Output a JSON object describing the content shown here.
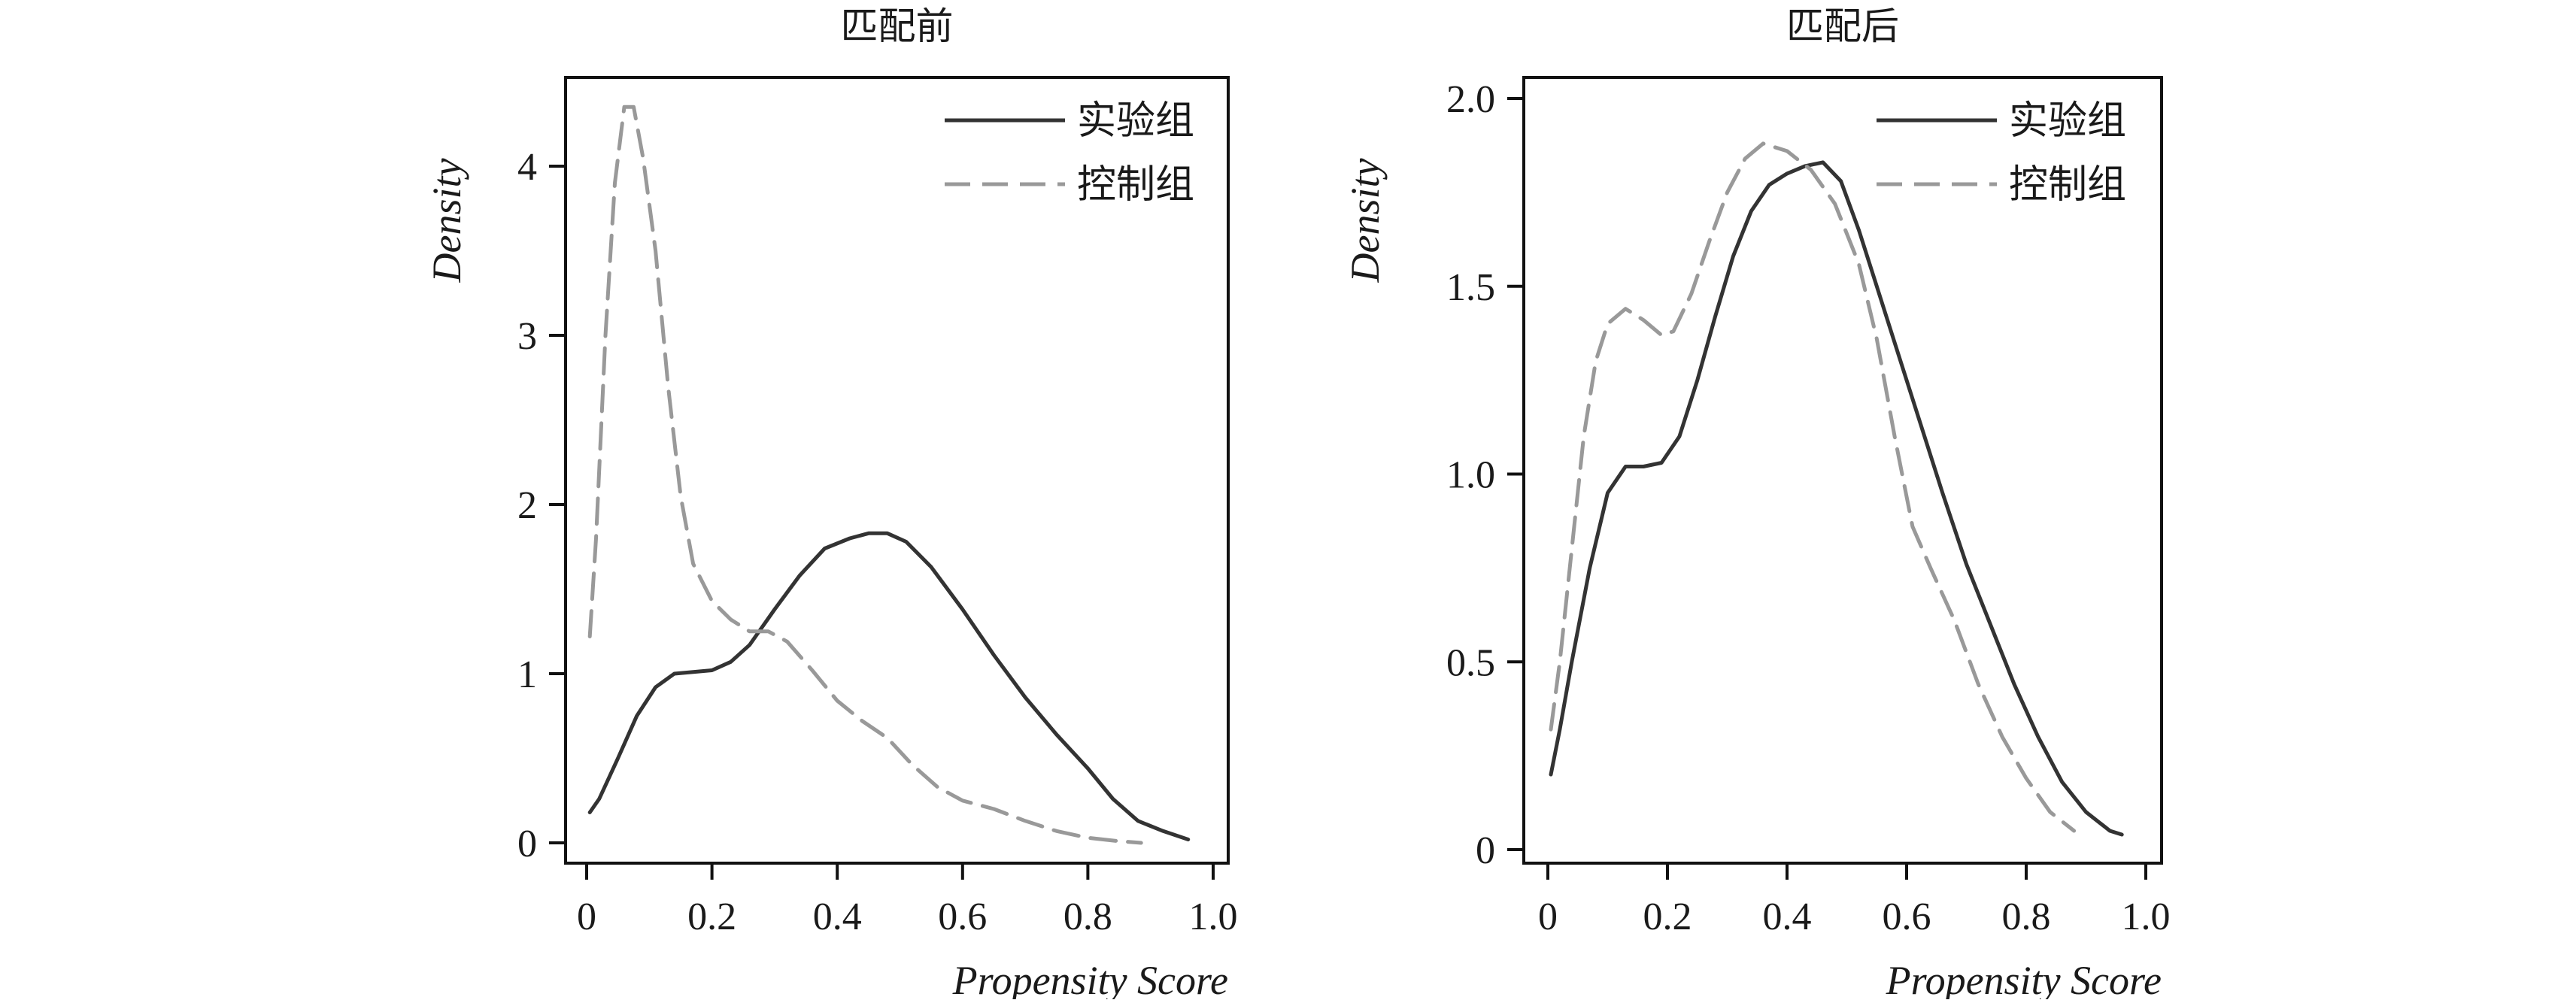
{
  "colors": {
    "treated": "#333333",
    "control": "#999999",
    "axis": "#111111"
  },
  "chart_data": [
    {
      "type": "line",
      "title": "匹配前",
      "xlabel": "Propensity Score",
      "ylabel": "Density",
      "xlim": [
        0,
        1.0
      ],
      "ylim": [
        0,
        4.5
      ],
      "xticks": [
        0,
        0.2,
        0.4,
        0.6,
        0.8,
        1.0
      ],
      "xtick_labels": [
        "0",
        "0.2",
        "0.4",
        "0.6",
        "0.8",
        "1.0"
      ],
      "yticks": [
        0,
        1,
        2,
        3,
        4
      ],
      "ytick_labels": [
        "0",
        "1",
        "2",
        "3",
        "4"
      ],
      "legend": "top-right",
      "series": [
        {
          "name": "实验组",
          "style": "solid",
          "points": [
            [
              0.005,
              0.18
            ],
            [
              0.02,
              0.26
            ],
            [
              0.05,
              0.5
            ],
            [
              0.08,
              0.75
            ],
            [
              0.11,
              0.92
            ],
            [
              0.14,
              1.0
            ],
            [
              0.17,
              1.01
            ],
            [
              0.2,
              1.02
            ],
            [
              0.23,
              1.07
            ],
            [
              0.26,
              1.17
            ],
            [
              0.3,
              1.38
            ],
            [
              0.34,
              1.58
            ],
            [
              0.38,
              1.74
            ],
            [
              0.42,
              1.8
            ],
            [
              0.45,
              1.83
            ],
            [
              0.48,
              1.83
            ],
            [
              0.51,
              1.78
            ],
            [
              0.55,
              1.63
            ],
            [
              0.6,
              1.38
            ],
            [
              0.65,
              1.11
            ],
            [
              0.7,
              0.86
            ],
            [
              0.75,
              0.64
            ],
            [
              0.8,
              0.44
            ],
            [
              0.84,
              0.26
            ],
            [
              0.88,
              0.13
            ],
            [
              0.92,
              0.07
            ],
            [
              0.96,
              0.02
            ]
          ]
        },
        {
          "name": "控制组",
          "style": "dashed",
          "points": [
            [
              0.005,
              1.22
            ],
            [
              0.015,
              1.8
            ],
            [
              0.03,
              3.0
            ],
            [
              0.045,
              3.9
            ],
            [
              0.06,
              4.35
            ],
            [
              0.075,
              4.35
            ],
            [
              0.09,
              4.05
            ],
            [
              0.11,
              3.5
            ],
            [
              0.13,
              2.7
            ],
            [
              0.15,
              2.05
            ],
            [
              0.17,
              1.65
            ],
            [
              0.2,
              1.43
            ],
            [
              0.23,
              1.32
            ],
            [
              0.26,
              1.25
            ],
            [
              0.29,
              1.25
            ],
            [
              0.32,
              1.19
            ],
            [
              0.36,
              1.02
            ],
            [
              0.4,
              0.84
            ],
            [
              0.44,
              0.72
            ],
            [
              0.48,
              0.62
            ],
            [
              0.52,
              0.46
            ],
            [
              0.56,
              0.33
            ],
            [
              0.6,
              0.25
            ],
            [
              0.65,
              0.2
            ],
            [
              0.7,
              0.13
            ],
            [
              0.75,
              0.07
            ],
            [
              0.8,
              0.03
            ],
            [
              0.85,
              0.01
            ],
            [
              0.885,
              0.0
            ]
          ]
        }
      ]
    },
    {
      "type": "line",
      "title": "匹配后",
      "xlabel": "Propensity Score",
      "ylabel": "Density",
      "xlim": [
        0,
        1.0
      ],
      "ylim": [
        0,
        2.05
      ],
      "xticks": [
        0,
        0.2,
        0.4,
        0.6,
        0.8,
        1.0
      ],
      "xtick_labels": [
        "0",
        "0.2",
        "0.4",
        "0.6",
        "0.8",
        "1.0"
      ],
      "yticks": [
        0,
        0.5,
        1.0,
        1.5,
        2.0
      ],
      "ytick_labels": [
        "0",
        "0.5",
        "1.0",
        "1.5",
        "2.0"
      ],
      "legend": "top-right",
      "series": [
        {
          "name": "实验组",
          "style": "solid",
          "points": [
            [
              0.005,
              0.2
            ],
            [
              0.02,
              0.32
            ],
            [
              0.04,
              0.5
            ],
            [
              0.07,
              0.75
            ],
            [
              0.1,
              0.95
            ],
            [
              0.13,
              1.02
            ],
            [
              0.16,
              1.02
            ],
            [
              0.19,
              1.03
            ],
            [
              0.22,
              1.1
            ],
            [
              0.25,
              1.25
            ],
            [
              0.28,
              1.42
            ],
            [
              0.31,
              1.58
            ],
            [
              0.34,
              1.7
            ],
            [
              0.37,
              1.77
            ],
            [
              0.4,
              1.8
            ],
            [
              0.43,
              1.82
            ],
            [
              0.46,
              1.83
            ],
            [
              0.49,
              1.78
            ],
            [
              0.52,
              1.65
            ],
            [
              0.55,
              1.5
            ],
            [
              0.58,
              1.35
            ],
            [
              0.62,
              1.15
            ],
            [
              0.66,
              0.95
            ],
            [
              0.7,
              0.76
            ],
            [
              0.74,
              0.6
            ],
            [
              0.78,
              0.44
            ],
            [
              0.82,
              0.3
            ],
            [
              0.86,
              0.18
            ],
            [
              0.9,
              0.1
            ],
            [
              0.94,
              0.05
            ],
            [
              0.96,
              0.04
            ]
          ]
        },
        {
          "name": "控制组",
          "style": "dashed",
          "points": [
            [
              0.005,
              0.32
            ],
            [
              0.02,
              0.5
            ],
            [
              0.04,
              0.8
            ],
            [
              0.06,
              1.1
            ],
            [
              0.08,
              1.3
            ],
            [
              0.1,
              1.4
            ],
            [
              0.13,
              1.44
            ],
            [
              0.16,
              1.41
            ],
            [
              0.19,
              1.37
            ],
            [
              0.21,
              1.38
            ],
            [
              0.24,
              1.48
            ],
            [
              0.27,
              1.62
            ],
            [
              0.3,
              1.75
            ],
            [
              0.33,
              1.84
            ],
            [
              0.36,
              1.88
            ],
            [
              0.4,
              1.86
            ],
            [
              0.44,
              1.81
            ],
            [
              0.48,
              1.72
            ],
            [
              0.52,
              1.56
            ],
            [
              0.55,
              1.36
            ],
            [
              0.58,
              1.1
            ],
            [
              0.61,
              0.86
            ],
            [
              0.64,
              0.75
            ],
            [
              0.68,
              0.61
            ],
            [
              0.72,
              0.44
            ],
            [
              0.76,
              0.3
            ],
            [
              0.8,
              0.19
            ],
            [
              0.84,
              0.1
            ],
            [
              0.88,
              0.05
            ]
          ]
        }
      ]
    }
  ]
}
